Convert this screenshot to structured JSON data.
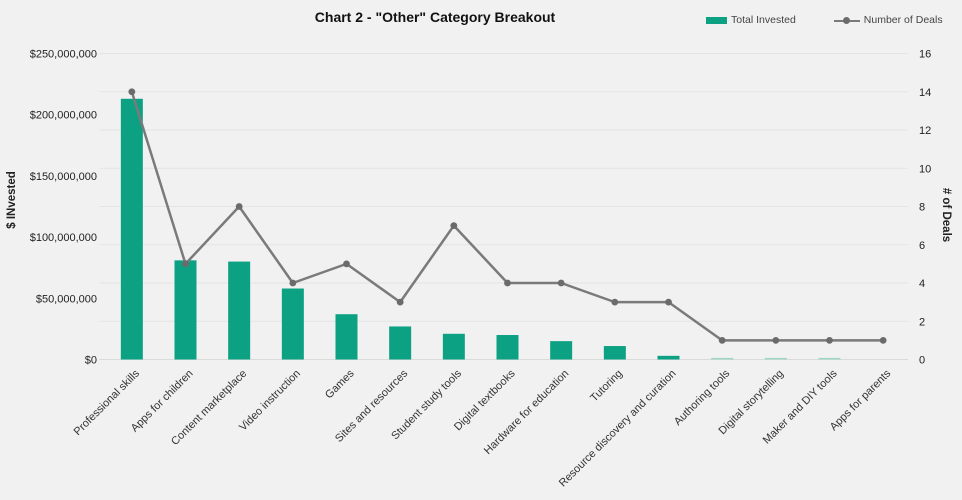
{
  "title": "Chart 2 - \"Other\" Category Breakout",
  "legend": {
    "total_invested_label": "Total Invested",
    "number_of_deals_label": "Number of Deals"
  },
  "colors": {
    "bar": "#0ca182",
    "bar_light": "#9fd6c6",
    "line": "#7a7a7a",
    "marker": "#6b6b6b",
    "background": "#f1f1f1",
    "gridline": "#e3e4e4",
    "baseline": "#d9dada",
    "tick_text": "#222222",
    "category_text": "#333333"
  },
  "chart_data": {
    "type": "bar",
    "subtype": "combo-bar-line-dual-axis",
    "title": "Chart 2 - \"Other\" Category Breakout",
    "grid": "horizontal",
    "legend_position": "top-right",
    "categories": [
      "Professional skills",
      "Apps for children",
      "Content marketplace",
      "Video instruction",
      "Games",
      "Sites and resources",
      "Student study tools",
      "Digital textbooks",
      "Hardware for education",
      "Tutoring",
      "Resource discovery and curation",
      "Authoring tools",
      "Digital storytelling",
      "Maker and DIY tools",
      "Apps for parents"
    ],
    "series": [
      {
        "name": "Total Invested",
        "type": "bar",
        "axis": "left",
        "values": [
          213000000,
          81000000,
          80000000,
          58000000,
          37000000,
          27000000,
          21000000,
          20000000,
          15000000,
          11000000,
          3000000,
          1000000,
          1000000,
          1000000,
          0
        ]
      },
      {
        "name": "Number of Deals",
        "type": "line",
        "axis": "right",
        "values": [
          14,
          5,
          8,
          4,
          5,
          3,
          7,
          4,
          4,
          3,
          3,
          1,
          1,
          1,
          1
        ]
      }
    ],
    "left_axis": {
      "label": "$ INvested",
      "min": 0,
      "max": 250000000,
      "tick_labels": [
        "$0",
        "$50,000,000",
        "$100,000,000",
        "$150,000,000",
        "$200,000,000",
        "$250,000,000"
      ]
    },
    "right_axis": {
      "label": "# of Deals",
      "min": 0,
      "max": 16,
      "tick_labels": [
        "0",
        "2",
        "4",
        "6",
        "8",
        "10",
        "12",
        "14",
        "16"
      ]
    }
  }
}
